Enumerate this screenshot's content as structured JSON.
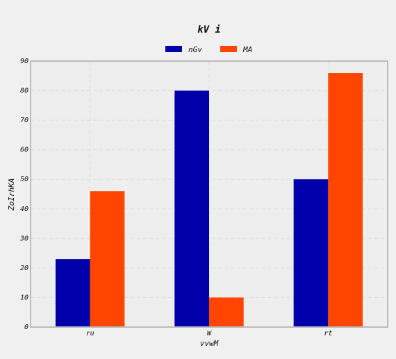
{
  "chart_data": {
    "type": "bar",
    "title": "kV  i",
    "xlabel": "vvwM",
    "ylabel": "ZoIrhKA",
    "categories": [
      "ru",
      "W",
      "rt"
    ],
    "series": [
      {
        "name": "nGv",
        "values": [
          23,
          80,
          50
        ],
        "color": "#0000aa"
      },
      {
        "name": "MA",
        "values": [
          46,
          10,
          86
        ],
        "color": "#ff4500"
      }
    ],
    "ylim": [
      0,
      90
    ],
    "yticks": [
      0,
      10,
      20,
      30,
      40,
      50,
      60,
      70,
      80,
      90
    ],
    "grid": true,
    "legend_position": "top-center",
    "colors": {
      "background": "#f0f0f0",
      "plot_background": "#eeeeee",
      "frame": "#bbbbbb",
      "grid": "#dddddd"
    }
  }
}
